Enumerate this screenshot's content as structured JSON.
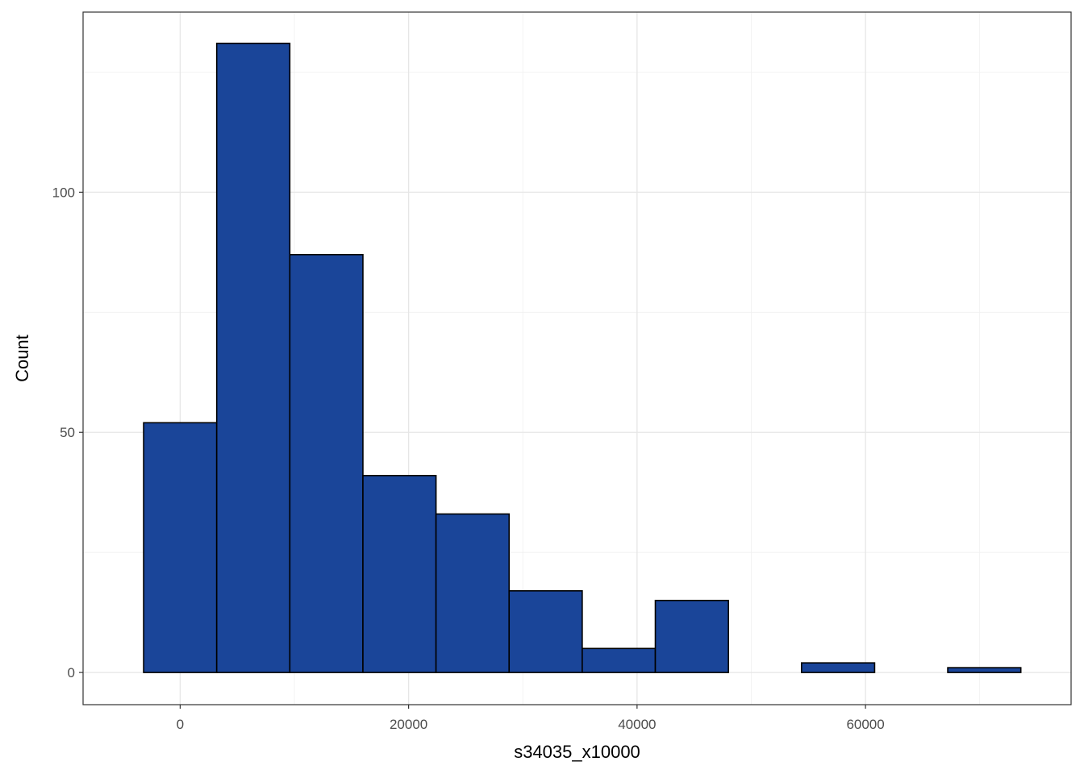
{
  "chart_data": {
    "type": "histogram",
    "title": "",
    "xlabel": "s34035_x10000",
    "ylabel": "Count",
    "xlim": [
      -8500,
      78000
    ],
    "ylim": [
      -6.7,
      137.5
    ],
    "x_ticks": [
      0,
      20000,
      40000,
      60000
    ],
    "x_tick_labels": [
      "0",
      "20000",
      "40000",
      "60000"
    ],
    "x_minor_ticks": [
      -10000,
      10000,
      30000,
      50000,
      70000
    ],
    "y_ticks": [
      0,
      50,
      100
    ],
    "y_tick_labels": [
      "0",
      "50",
      "100"
    ],
    "y_minor_ticks": [
      25,
      75,
      125
    ],
    "grid": true,
    "bar_fill": "#1A4599",
    "bar_stroke": "#000000",
    "bins": [
      {
        "x0": -3200,
        "x1": 3200,
        "count": 52
      },
      {
        "x0": 3200,
        "x1": 9600,
        "count": 131
      },
      {
        "x0": 9600,
        "x1": 16000,
        "count": 87
      },
      {
        "x0": 16000,
        "x1": 22400,
        "count": 41
      },
      {
        "x0": 22400,
        "x1": 28800,
        "count": 33
      },
      {
        "x0": 28800,
        "x1": 35200,
        "count": 17
      },
      {
        "x0": 35200,
        "x1": 41600,
        "count": 5
      },
      {
        "x0": 41600,
        "x1": 48000,
        "count": 15
      },
      {
        "x0": 48000,
        "x1": 54400,
        "count": 0
      },
      {
        "x0": 54400,
        "x1": 60800,
        "count": 2
      },
      {
        "x0": 60800,
        "x1": 67200,
        "count": 0
      },
      {
        "x0": 67200,
        "x1": 73600,
        "count": 1
      }
    ]
  }
}
